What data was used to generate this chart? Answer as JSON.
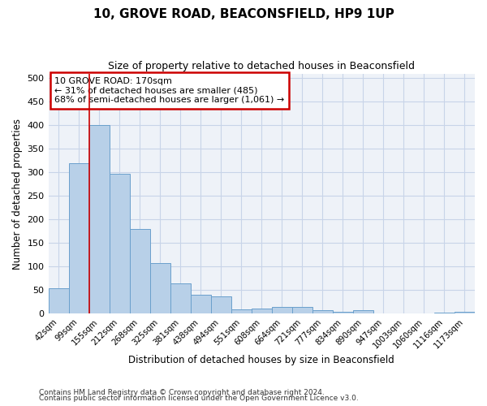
{
  "title": "10, GROVE ROAD, BEACONSFIELD, HP9 1UP",
  "subtitle": "Size of property relative to detached houses in Beaconsfield",
  "xlabel": "Distribution of detached houses by size in Beaconsfield",
  "ylabel": "Number of detached properties",
  "footnote1": "Contains HM Land Registry data © Crown copyright and database right 2024.",
  "footnote2": "Contains public sector information licensed under the Open Government Licence v3.0.",
  "categories": [
    "42sqm",
    "99sqm",
    "155sqm",
    "212sqm",
    "268sqm",
    "325sqm",
    "381sqm",
    "438sqm",
    "494sqm",
    "551sqm",
    "608sqm",
    "664sqm",
    "721sqm",
    "777sqm",
    "834sqm",
    "890sqm",
    "947sqm",
    "1003sqm",
    "1060sqm",
    "1116sqm",
    "1173sqm"
  ],
  "values": [
    55,
    320,
    400,
    297,
    180,
    108,
    65,
    40,
    37,
    10,
    11,
    14,
    15,
    8,
    5,
    8,
    0,
    0,
    0,
    3,
    5
  ],
  "bar_color": "#b8d0e8",
  "bar_edge_color": "#6aa0cc",
  "grid_color": "#c8d4e8",
  "background_color": "#eef2f8",
  "annotation_box_text": "10 GROVE ROAD: 170sqm\n← 31% of detached houses are smaller (485)\n68% of semi-detached houses are larger (1,061) →",
  "annotation_box_color": "#cc0000",
  "redline_x": 1.5,
  "ylim": [
    0,
    510
  ],
  "yticks": [
    0,
    50,
    100,
    150,
    200,
    250,
    300,
    350,
    400,
    450,
    500
  ]
}
